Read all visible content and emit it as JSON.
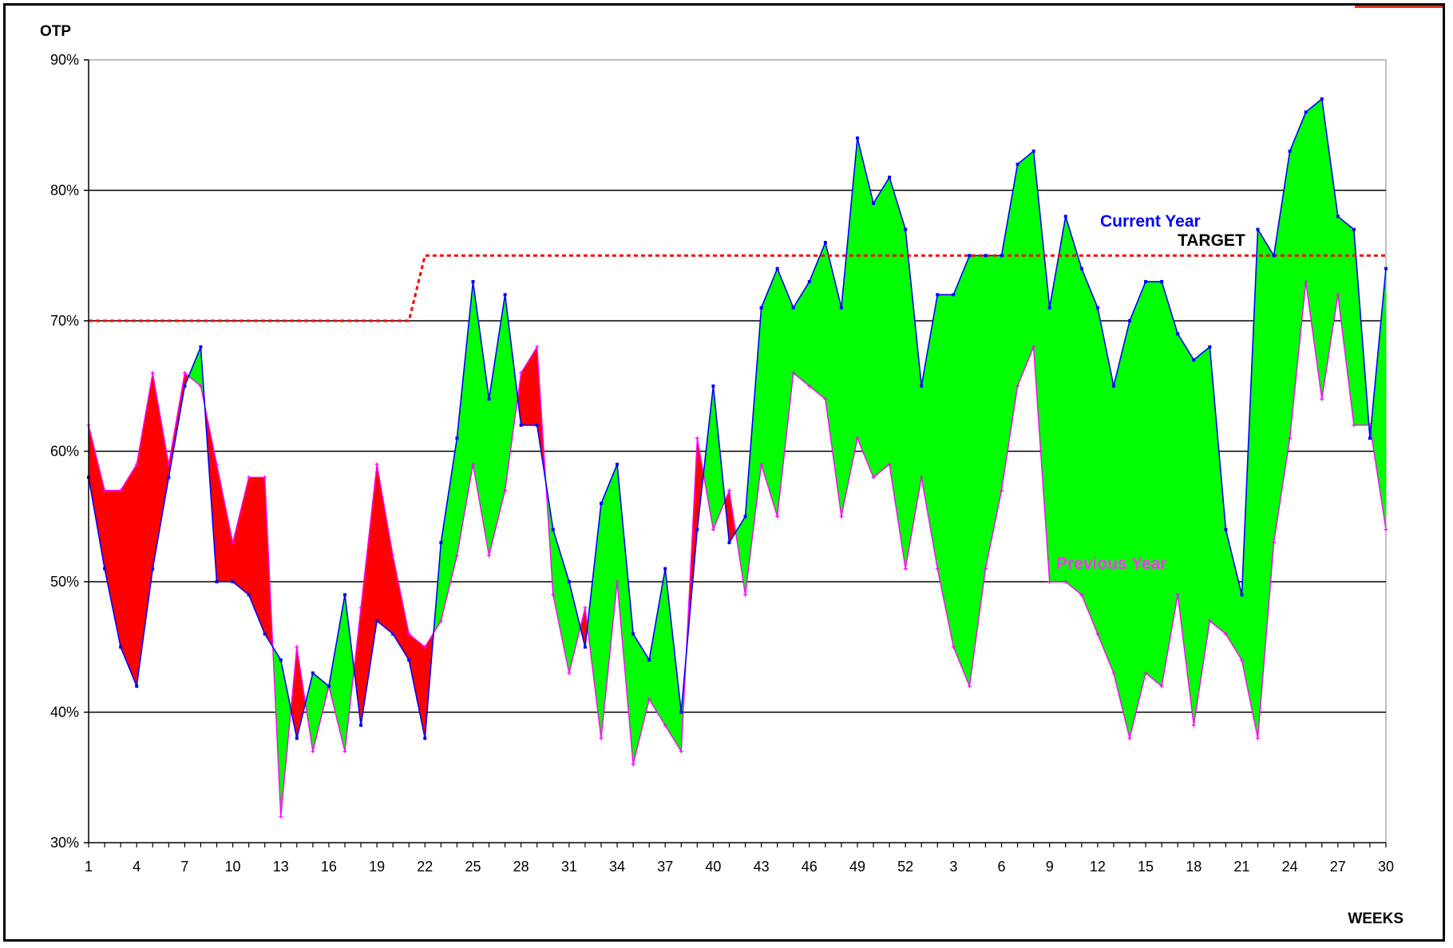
{
  "chart_data": {
    "type": "line",
    "ylabel": "OTP",
    "xlabel": "WEEKS",
    "ylim": [
      30,
      90
    ],
    "yticks": [
      30,
      40,
      50,
      60,
      70,
      80,
      90
    ],
    "y_tick_suffix": "%",
    "grid": "horizontal",
    "x_tick_every": 3,
    "categories": [
      "1",
      "2",
      "3",
      "4",
      "5",
      "6",
      "7",
      "8",
      "9",
      "10",
      "11",
      "12",
      "13",
      "14",
      "15",
      "16",
      "17",
      "18",
      "19",
      "20",
      "21",
      "22",
      "23",
      "24",
      "25",
      "26",
      "27",
      "28",
      "29",
      "30",
      "31",
      "32",
      "33",
      "34",
      "35",
      "36",
      "37",
      "38",
      "39",
      "40",
      "41",
      "42",
      "43",
      "44",
      "45",
      "46",
      "47",
      "48",
      "49",
      "50",
      "51",
      "52",
      "1",
      "2",
      "3",
      "4",
      "5",
      "6",
      "7",
      "8",
      "9",
      "10",
      "11",
      "12",
      "13",
      "14",
      "15",
      "16",
      "17",
      "18",
      "19",
      "20",
      "21",
      "22",
      "23",
      "24",
      "25",
      "26",
      "27",
      "28",
      "29",
      "30"
    ],
    "series": [
      {
        "name": "Current Year",
        "color": "#0000ff",
        "values": [
          58,
          51,
          45,
          42,
          51,
          58,
          65,
          68,
          50,
          50,
          49,
          46,
          44,
          38,
          43,
          42,
          49,
          39,
          47,
          46,
          44,
          38,
          53,
          61,
          73,
          64,
          72,
          62,
          62,
          54,
          50,
          45,
          56,
          59,
          46,
          44,
          51,
          40,
          54,
          65,
          53,
          55,
          71,
          74,
          71,
          73,
          76,
          71,
          84,
          79,
          81,
          77,
          65,
          72,
          72,
          75,
          75,
          75,
          82,
          83,
          71,
          78,
          74,
          71,
          65,
          70,
          73,
          73,
          69,
          67,
          68,
          54,
          49,
          77,
          75,
          83,
          86,
          87,
          78,
          77,
          61,
          74
        ]
      },
      {
        "name": "Previous Year",
        "color": "#ff00ff",
        "values": [
          62,
          57,
          57,
          59,
          66,
          59,
          66,
          65,
          59,
          53,
          58,
          58,
          32,
          45,
          37,
          42,
          37,
          48,
          59,
          52,
          46,
          45,
          47,
          52,
          59,
          52,
          57,
          66,
          68,
          49,
          43,
          48,
          38,
          50,
          36,
          41,
          39,
          37,
          61,
          54,
          57,
          49,
          59,
          55,
          66,
          65,
          64,
          55,
          61,
          58,
          59,
          51,
          58,
          51,
          45,
          42,
          51,
          57,
          65,
          68,
          50,
          50,
          49,
          46,
          43,
          38,
          43,
          42,
          49,
          39,
          47,
          46,
          44,
          38,
          53,
          61,
          73,
          64,
          72,
          62,
          62,
          54
        ]
      },
      {
        "name": "TARGET",
        "color": "#ff0000",
        "values": [
          70,
          70,
          70,
          70,
          70,
          70,
          70,
          70,
          70,
          70,
          70,
          70,
          70,
          70,
          70,
          70,
          70,
          70,
          70,
          70,
          70,
          75,
          75,
          75,
          75,
          75,
          75,
          75,
          75,
          75,
          75,
          75,
          75,
          75,
          75,
          75,
          75,
          75,
          75,
          75,
          75,
          75,
          75,
          75,
          75,
          75,
          75,
          75,
          75,
          75,
          75,
          75,
          75,
          75,
          75,
          75,
          75,
          75,
          75,
          75,
          75,
          75,
          75,
          75,
          75,
          75,
          75,
          75,
          75,
          75,
          75,
          75,
          75,
          75,
          75,
          75,
          75,
          75,
          75,
          75,
          75,
          75
        ]
      }
    ],
    "fill_between": {
      "above_color": "#00ff00",
      "below_color": "#ff0000"
    }
  }
}
